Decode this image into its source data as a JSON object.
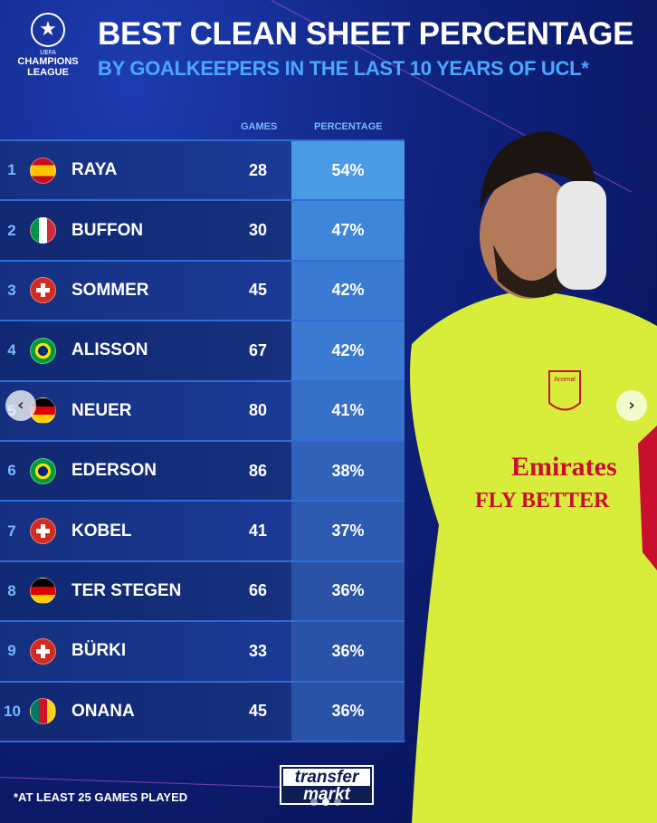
{
  "header": {
    "title": "BEST CLEAN SHEET PERCENTAGE",
    "subtitle": "BY GOALKEEPERS IN THE LAST 10 YEARS OF UCL*"
  },
  "logo": {
    "uefa": "UEFA",
    "line1": "CHAMPIONS",
    "line2": "LEAGUE"
  },
  "columns": {
    "games": "GAMES",
    "percentage": "PERCENTAGE"
  },
  "rows": [
    {
      "rank": "1",
      "name": "RAYA",
      "flag": "spain",
      "games": "28",
      "percentage": "54%",
      "color": "#4a9ae6"
    },
    {
      "rank": "2",
      "name": "BUFFON",
      "flag": "italy",
      "games": "30",
      "percentage": "47%",
      "color": "#3f86da"
    },
    {
      "rank": "3",
      "name": "SOMMER",
      "flag": "switzerland",
      "games": "45",
      "percentage": "42%",
      "color": "#3a7ad2"
    },
    {
      "rank": "4",
      "name": "ALISSON",
      "flag": "brazil",
      "games": "67",
      "percentage": "42%",
      "color": "#3a7ad2"
    },
    {
      "rank": "5",
      "name": "NEUER",
      "flag": "germany",
      "games": "80",
      "percentage": "41%",
      "color": "#3670c8"
    },
    {
      "rank": "6",
      "name": "EDERSON",
      "flag": "brazil",
      "games": "86",
      "percentage": "38%",
      "color": "#3062ba"
    },
    {
      "rank": "7",
      "name": "KOBEL",
      "flag": "switzerland",
      "games": "41",
      "percentage": "37%",
      "color": "#2d5bb2"
    },
    {
      "rank": "8",
      "name": "TER STEGEN",
      "flag": "germany",
      "games": "66",
      "percentage": "36%",
      "color": "#2a53a8"
    },
    {
      "rank": "9",
      "name": "BÜRKI",
      "flag": "switzerland",
      "games": "33",
      "percentage": "36%",
      "color": "#2a53a8"
    },
    {
      "rank": "10",
      "name": "ONANA",
      "flag": "cameroon",
      "games": "45",
      "percentage": "36%",
      "color": "#2a53a8"
    }
  ],
  "footnote": "*AT LEAST 25 GAMES PLAYED",
  "brand": {
    "line1": "transfer",
    "line2": "markt"
  },
  "shirt": {
    "sponsor1": "Emirates",
    "sponsor2": "FLY BETTER",
    "badge": "Arsenal"
  },
  "carousel": {
    "prev_icon": "chevron-left-icon",
    "next_icon": "chevron-right-icon",
    "pages": 3,
    "current": 2
  }
}
